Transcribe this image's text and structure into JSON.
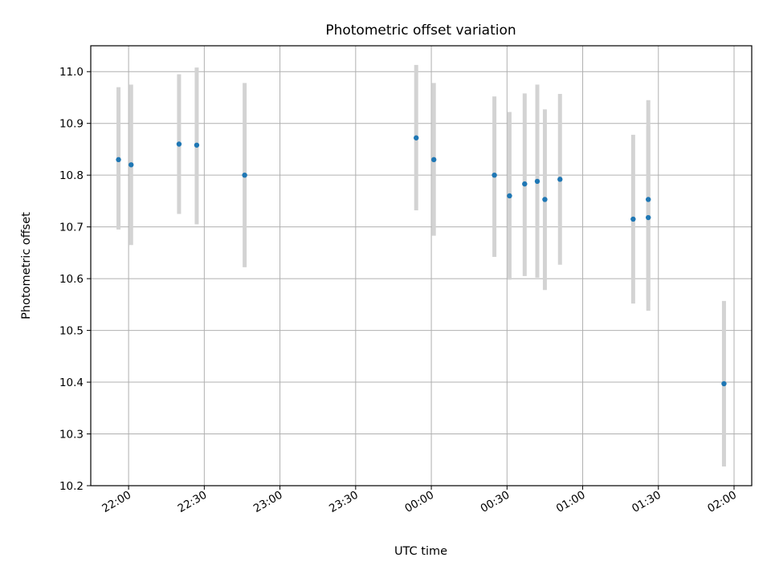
{
  "chart_data": {
    "type": "scatter",
    "title": "Photometric offset variation",
    "xlabel": "UTC time",
    "ylabel": "Photometric offset",
    "x_unit": "UTC clock time (HH:MM), starting late evening and crossing midnight",
    "xlim": [
      "21:45",
      "02:07"
    ],
    "ylim": [
      10.2,
      11.05
    ],
    "x_ticks": [
      "22:00",
      "22:30",
      "23:00",
      "23:30",
      "00:00",
      "00:30",
      "01:00",
      "01:30",
      "02:00"
    ],
    "y_ticks": [
      10.2,
      10.3,
      10.4,
      10.5,
      10.6,
      10.7,
      10.8,
      10.9,
      11.0
    ],
    "grid": true,
    "points": [
      {
        "x": "21:56",
        "y": 10.83,
        "err_low": 10.695,
        "err_high": 10.97
      },
      {
        "x": "22:01",
        "y": 10.82,
        "err_low": 10.665,
        "err_high": 10.975
      },
      {
        "x": "22:20",
        "y": 10.86,
        "err_low": 10.725,
        "err_high": 10.995
      },
      {
        "x": "22:27",
        "y": 10.858,
        "err_low": 10.705,
        "err_high": 11.008
      },
      {
        "x": "22:46",
        "y": 10.8,
        "err_low": 10.622,
        "err_high": 10.978
      },
      {
        "x": "23:54",
        "y": 10.872,
        "err_low": 10.732,
        "err_high": 11.013
      },
      {
        "x": "00:01",
        "y": 10.83,
        "err_low": 10.683,
        "err_high": 10.978
      },
      {
        "x": "00:25",
        "y": 10.8,
        "err_low": 10.642,
        "err_high": 10.952
      },
      {
        "x": "00:31",
        "y": 10.76,
        "err_low": 10.598,
        "err_high": 10.922
      },
      {
        "x": "00:37",
        "y": 10.783,
        "err_low": 10.605,
        "err_high": 10.958
      },
      {
        "x": "00:42",
        "y": 10.788,
        "err_low": 10.602,
        "err_high": 10.975
      },
      {
        "x": "00:45",
        "y": 10.753,
        "err_low": 10.578,
        "err_high": 10.927
      },
      {
        "x": "00:51",
        "y": 10.792,
        "err_low": 10.627,
        "err_high": 10.957
      },
      {
        "x": "01:20",
        "y": 10.715,
        "err_low": 10.552,
        "err_high": 10.878
      },
      {
        "x": "01:26",
        "y": 10.753,
        "err_low": 10.558,
        "err_high": 10.945
      },
      {
        "x": "01:26",
        "y": 10.718,
        "err_low": 10.538,
        "err_high": 10.895
      },
      {
        "x": "01:56",
        "y": 10.397,
        "err_low": 10.237,
        "err_high": 10.557
      }
    ],
    "colors": {
      "marker": "#1f77b4",
      "errorbar": "#d3d3d3",
      "grid": "#b0b0b0",
      "axes": "#000000"
    }
  }
}
